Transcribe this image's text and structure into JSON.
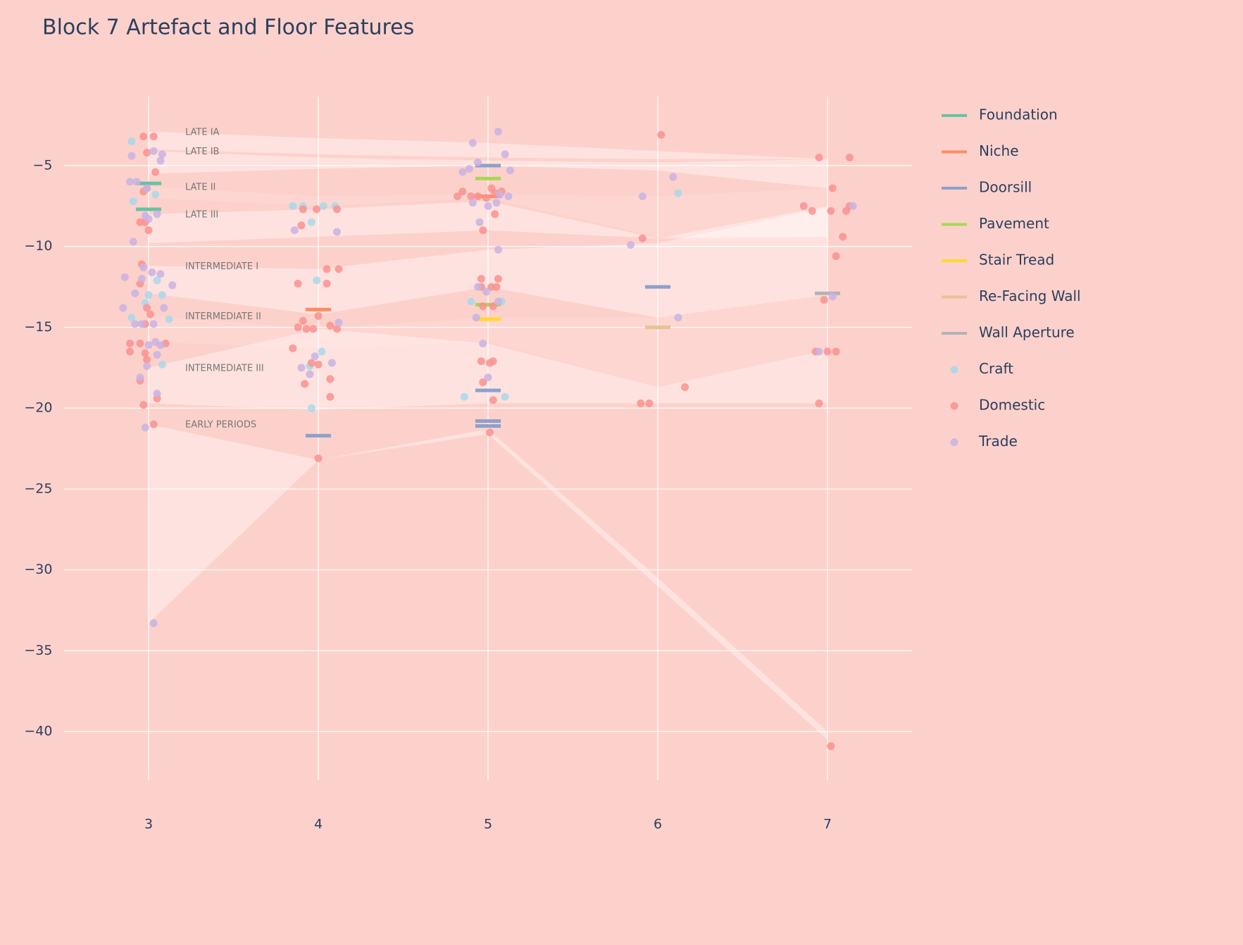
{
  "chart_data": {
    "type": "scatter",
    "title": "Block 7 Artefact and Floor Features",
    "xlim": [
      2.5,
      7.5
    ],
    "ylim": [
      -43,
      -0.73
    ],
    "xticks": [
      3,
      4,
      5,
      6,
      7
    ],
    "yticks": [
      {
        "value": -5,
        "label": "−5"
      },
      {
        "value": -10,
        "label": "−10"
      },
      {
        "value": -15,
        "label": "−15"
      },
      {
        "value": -20,
        "label": "−20"
      },
      {
        "value": -25,
        "label": "−25"
      },
      {
        "value": -30,
        "label": "−30"
      },
      {
        "value": -35,
        "label": "−35"
      },
      {
        "value": -40,
        "label": "−40"
      }
    ],
    "grid": true,
    "background": "#fdd1cb",
    "period_x": [
      3,
      4,
      5,
      6,
      7
    ],
    "periods": [
      {
        "label": "LATE IA",
        "shaded": true,
        "top": [
          -2.9,
          -3.3,
          -3.6,
          -4.1,
          -4.6
        ],
        "bottom": [
          -4.0,
          -4.3,
          -4.5,
          -4.6,
          -4.6
        ]
      },
      {
        "label": "LATE IB",
        "shaded": true,
        "top": [
          -4.1,
          -4.5,
          -4.7,
          -4.8,
          -4.6
        ],
        "bottom": [
          -5.5,
          -5.2,
          -5.0,
          -5.3,
          -6.4
        ]
      },
      {
        "label": "LATE II",
        "shaded": false,
        "top": [
          -6.3,
          -6.9,
          -6.8,
          -6.9,
          -6.4
        ],
        "bottom": [
          -7.0,
          -7.5,
          -7.0,
          -9.4,
          -9.4
        ]
      },
      {
        "label": "LATE III",
        "shaded": true,
        "top": [
          -8.0,
          -7.7,
          -7.2,
          -9.5,
          -7.5
        ],
        "bottom": [
          -9.8,
          -9.4,
          -9.0,
          -9.5,
          -9.4
        ]
      },
      {
        "label": "INTERMEDIATE I",
        "shaded": true,
        "top": [
          -11.2,
          -11.4,
          -10.2,
          -9.8,
          -7.6
        ],
        "bottom": [
          -12.9,
          -14.2,
          -12.5,
          -14.4,
          -13.0
        ]
      },
      {
        "label": "INTERMEDIATE II",
        "shaded": false,
        "top": [
          -14.3,
          -15.1,
          -14.4,
          -14.4,
          -13.0
        ],
        "bottom": [
          -15.9,
          -16.3,
          -15.9,
          -18.7,
          -16.4
        ]
      },
      {
        "label": "INTERMEDIATE III",
        "shaded": true,
        "top": [
          -17.5,
          -15.1,
          -16.0,
          -18.7,
          -16.4
        ],
        "bottom": [
          -19.7,
          -20.1,
          -19.7,
          -19.7,
          -19.7
        ]
      },
      {
        "label": "EARLY PERIODS",
        "shaded": true,
        "top": [
          -21.0,
          -23.2,
          -21.3,
          -30.5,
          -40.0
        ],
        "bottom": [
          -33.3,
          -23.2,
          -21.6,
          -31.0,
          -40.5
        ]
      }
    ],
    "features": [
      {
        "name": "Foundation",
        "color": "#66c2a5",
        "x": [
          3,
          3
        ],
        "values": [
          -6.1,
          -7.7
        ]
      },
      {
        "name": "Niche",
        "color": "#fc8d62",
        "x": [
          4,
          5
        ],
        "values": [
          -13.9,
          -6.9
        ]
      },
      {
        "name": "Doorsill",
        "color": "#8da0cb",
        "x": [
          5,
          4,
          5,
          5,
          5,
          6
        ],
        "values": [
          -5.0,
          -21.7,
          -18.9,
          -20.8,
          -21.1,
          -12.5
        ]
      },
      {
        "name": "Pavement",
        "color": "#a6d854",
        "x": [
          5,
          5
        ],
        "values": [
          -5.8,
          -13.6
        ]
      },
      {
        "name": "Stair Tread",
        "color": "#ffd92f",
        "x": [
          5
        ],
        "values": [
          -14.5
        ]
      },
      {
        "name": "Re-Facing Wall",
        "color": "#e5c494",
        "x": [
          6
        ],
        "values": [
          -15.0
        ]
      },
      {
        "name": "Wall Aperture",
        "color": "#b3b3b3",
        "x": [
          7
        ],
        "values": [
          -12.9
        ]
      }
    ],
    "series": [
      {
        "name": "Craft",
        "color": "#a8d8ea",
        "x": [
          2.9,
          2.91,
          3.04,
          3.0,
          3.08,
          2.98,
          2.9,
          3.12,
          3.08,
          3.05,
          3.85,
          3.91,
          4.03,
          4.1,
          3.96,
          3.99,
          4.02,
          3.96,
          4.9,
          5.08,
          4.86,
          5.1,
          6.12,
          3.95
        ],
        "values": [
          -3.5,
          -7.2,
          -6.8,
          -13.0,
          -13.0,
          -13.5,
          -14.4,
          -14.5,
          -17.3,
          -12.1,
          -7.5,
          -7.5,
          -7.5,
          -7.5,
          -8.5,
          -12.1,
          -16.5,
          -20.0,
          -13.4,
          -13.4,
          -19.3,
          -19.3,
          -6.7,
          -17.4
        ]
      },
      {
        "name": "Domestic",
        "color": "#f9928f",
        "x": [
          2.97,
          3.03,
          2.99,
          3.04,
          2.97,
          2.99,
          2.95,
          2.98,
          3.0,
          2.96,
          2.95,
          2.99,
          3.01,
          2.98,
          2.89,
          2.95,
          2.89,
          2.98,
          2.99,
          2.95,
          2.97,
          3.03,
          3.05,
          3.1,
          3.91,
          3.99,
          4.11,
          3.9,
          3.88,
          4.05,
          4.05,
          4.12,
          4.0,
          3.91,
          3.88,
          3.93,
          3.97,
          4.07,
          4.11,
          3.85,
          3.96,
          4.0,
          4.07,
          3.92,
          4.07,
          4.0,
          4.85,
          4.82,
          4.9,
          4.94,
          4.99,
          5.02,
          5.04,
          5.08,
          5.04,
          4.97,
          4.96,
          5.06,
          4.96,
          5.02,
          5.05,
          4.97,
          5.03,
          4.96,
          5.01,
          5.03,
          4.97,
          5.03,
          5.01,
          6.02,
          5.91,
          5.9,
          5.95,
          6.16,
          6.95,
          7.13,
          7.03,
          6.86,
          6.91,
          7.02,
          7.11,
          7.13,
          7.09,
          7.05,
          6.98,
          6.93,
          7.0,
          7.05,
          6.95,
          7.02
        ],
        "values": [
          -3.2,
          -3.2,
          -4.2,
          -5.4,
          -6.6,
          -6.4,
          -8.5,
          -8.5,
          -9.0,
          -11.1,
          -12.3,
          -13.8,
          -14.2,
          -14.8,
          -16.0,
          -16.0,
          -16.5,
          -16.6,
          -17.0,
          -18.3,
          -19.8,
          -21.0,
          -19.4,
          -16.0,
          -7.7,
          -7.7,
          -7.7,
          -8.7,
          -12.3,
          -12.3,
          -11.4,
          -11.4,
          -14.3,
          -14.6,
          -15.0,
          -15.1,
          -15.1,
          -14.9,
          -15.1,
          -16.3,
          -17.2,
          -17.3,
          -18.2,
          -18.5,
          -19.3,
          -23.1,
          -6.6,
          -6.9,
          -6.9,
          -6.9,
          -7.0,
          -6.4,
          -6.7,
          -6.6,
          -8.0,
          -9.0,
          -12.0,
          -12.0,
          -12.5,
          -12.5,
          -12.5,
          -13.7,
          -13.7,
          -17.1,
          -17.2,
          -17.1,
          -18.4,
          -19.5,
          -21.5,
          -3.1,
          -9.5,
          -19.7,
          -19.7,
          -18.7,
          -4.5,
          -4.5,
          -6.4,
          -7.5,
          -7.8,
          -7.8,
          -7.8,
          -7.5,
          -9.4,
          -10.6,
          -13.3,
          -16.5,
          -16.5,
          -16.5,
          -19.7,
          -40.9
        ]
      },
      {
        "name": "Trade",
        "color": "#c8b3e3",
        "x": [
          2.9,
          3.03,
          3.08,
          3.07,
          2.89,
          2.93,
          2.99,
          2.98,
          3.0,
          3.05,
          2.91,
          2.97,
          3.02,
          3.07,
          2.86,
          2.96,
          3.14,
          2.92,
          3.09,
          2.85,
          2.92,
          3.03,
          2.96,
          3.04,
          3.07,
          3.0,
          2.99,
          3.05,
          2.95,
          3.05,
          2.98,
          3.03,
          3.86,
          4.11,
          4.12,
          3.98,
          3.9,
          4.08,
          3.95,
          4.91,
          5.06,
          4.94,
          4.89,
          4.85,
          5.1,
          5.13,
          4.91,
          5.0,
          5.05,
          5.07,
          5.12,
          4.95,
          5.06,
          4.94,
          4.99,
          5.06,
          4.93,
          4.97,
          5.0,
          5.84,
          5.91,
          6.09,
          6.12,
          7.03,
          6.95,
          7.15
        ],
        "values": [
          -4.4,
          -4.1,
          -4.3,
          -4.7,
          -6.0,
          -6.0,
          -6.4,
          -8.1,
          -8.3,
          -8.0,
          -9.7,
          -11.3,
          -11.6,
          -11.7,
          -11.9,
          -12.0,
          -12.4,
          -12.9,
          -13.8,
          -13.8,
          -14.8,
          -14.8,
          -14.8,
          -15.9,
          -16.1,
          -16.1,
          -17.4,
          -16.7,
          -18.1,
          -19.1,
          -21.2,
          -33.3,
          -9.0,
          -9.1,
          -14.7,
          -16.8,
          -17.5,
          -17.2,
          -17.9,
          -3.6,
          -2.9,
          -4.8,
          -5.2,
          -5.4,
          -4.3,
          -5.3,
          -7.3,
          -7.5,
          -7.3,
          -6.8,
          -6.9,
          -8.5,
          -10.2,
          -12.5,
          -12.8,
          -13.4,
          -14.4,
          -16.0,
          -18.1,
          -9.9,
          -6.9,
          -5.7,
          -14.4,
          -13.1,
          -16.5,
          -7.5
        ]
      }
    ]
  }
}
